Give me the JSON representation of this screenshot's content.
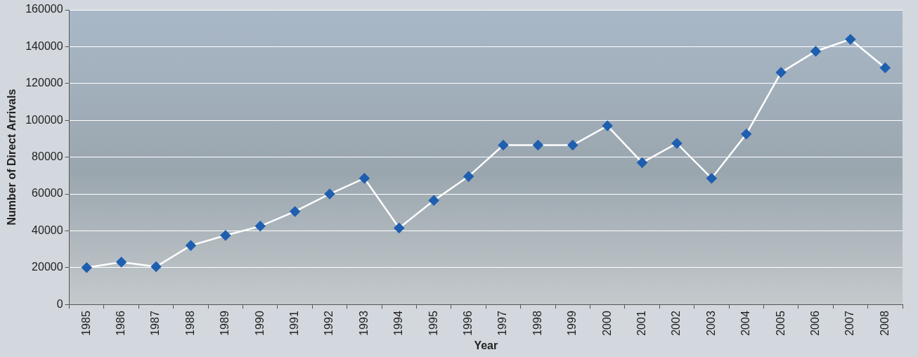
{
  "chart_data": {
    "type": "line",
    "x_label": "Year",
    "y_label": "Number of Direct Arrivals",
    "categories": [
      "1985",
      "1986",
      "1987",
      "1988",
      "1989",
      "1990",
      "1991",
      "1992",
      "1993",
      "1994",
      "1995",
      "1996",
      "1997",
      "1998",
      "1999",
      "2000",
      "2001",
      "2002",
      "2003",
      "2004",
      "2005",
      "2006",
      "2007",
      "2008"
    ],
    "values": [
      20000,
      23000,
      20500,
      32000,
      37500,
      42500,
      50500,
      60000,
      68500,
      41500,
      56500,
      69500,
      86500,
      86500,
      86500,
      97000,
      77000,
      87500,
      68500,
      92500,
      126000,
      137500,
      144000,
      128500
    ],
    "color": "#ffffff",
    "marker": "diamond",
    "ylim": [
      0,
      160000
    ],
    "yticks": [
      0,
      20000,
      40000,
      60000,
      80000,
      100000,
      120000,
      140000,
      160000
    ],
    "grid": true
  }
}
